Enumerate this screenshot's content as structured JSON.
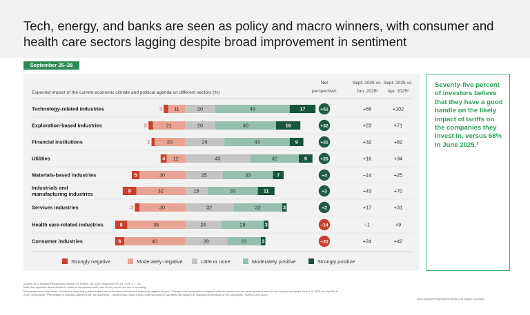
{
  "title": "Tech, energy, and banks are seen as policy and macro winners, with consumer and health care sectors lagging despite broad improvement in sentiment",
  "date_badge": "September 25–28",
  "chart_data": {
    "type": "bar",
    "orientation": "horizontal-stacked",
    "title": "Expected impact of the current economic climate and political agenda on different sectors (%)",
    "columns": {
      "net": "Net perspective¹",
      "jun": "Sept. 2025 vs. Jun. 2025²",
      "apr": "Sept. 2025 vs. Apr. 2025²"
    },
    "categories": [
      "Technology-related industries",
      "Exploration-based industries",
      "Financial institutions",
      "Utilities",
      "Materials-based industries",
      "Industrials and manufacturing industries",
      "Services industries",
      "Health care-related industries",
      "Consumer industries"
    ],
    "category_lines": [
      [
        "Technology-related industries"
      ],
      [
        "Exploration-based industries"
      ],
      [
        "Financial institutions"
      ],
      [
        "Utilities"
      ],
      [
        "Materials-based industries"
      ],
      [
        "Industrials and",
        "manufacturing industries"
      ],
      [
        "Services industries"
      ],
      [
        "Health care-related industries"
      ],
      [
        "Consumer industries"
      ]
    ],
    "series": [
      {
        "name": "Strongly negative",
        "color": "#c8402f",
        "values": [
          3,
          3,
          2,
          4,
          5,
          9,
          3,
          8,
          6
        ]
      },
      {
        "name": "Moderately negative",
        "color": "#e9a392",
        "values": [
          11,
          21,
          20,
          12,
          30,
          32,
          30,
          38,
          40
        ]
      },
      {
        "name": "Little or none",
        "color": "#c3c3c3",
        "values": [
          20,
          20,
          26,
          43,
          25,
          15,
          32,
          24,
          28
        ]
      },
      {
        "name": "Moderately positive",
        "color": "#97bfae",
        "values": [
          49,
          40,
          43,
          32,
          33,
          33,
          32,
          28,
          22
        ]
      },
      {
        "name": "Strongly positive",
        "color": "#17543a",
        "values": [
          17,
          16,
          9,
          9,
          7,
          11,
          3,
          3,
          3
        ]
      }
    ],
    "net_perspective": [
      "+51",
      "+32",
      "+31",
      "+25",
      "+4",
      "+3",
      "+2",
      "–14",
      "–20"
    ],
    "net_colors": [
      "#1f5c43",
      "#1f5c43",
      "#1f5c43",
      "#1f5c43",
      "#1f5c43",
      "#1f5c43",
      "#1f5c43",
      "#c8402f",
      "#c8402f"
    ],
    "vs_jun_2025": [
      "+68",
      "+23",
      "+32",
      "+16",
      "–14",
      "+43",
      "+17",
      "–1",
      "+24"
    ],
    "vs_apr_2025": [
      "+102",
      "+71",
      "+82",
      "+34",
      "+25",
      "+70",
      "+31",
      "+9",
      "+42"
    ],
    "legend": [
      "Strongly negative",
      "Moderately negative",
      "Little or none",
      "Moderately positive",
      "Strongly positive"
    ]
  },
  "callout": "Seventy-five percent of investors believe that they have a good handle on the likely impact of tariffs on the companies they invest in, versus 68% in June 2025.³",
  "footer": {
    "source": "Source: BCG Investor Perspectives Series, US Edition, Q3 2025, September 25–28, 2025, n = 152.",
    "note": "Note: Any apparent discrepancies in totals or comparisons with prior survey results are due to rounding.",
    "fn1": "¹Net perspective is the share of investors expecting positive impact minus the share of investors expecting negative impact. ²Change in net perspective compared with the results from the same question asked in the surveys conducted June 6–8, 2025, and April 8–9,",
    "fn2": "2025, respectively. ³Percentage of investors agreeing with the statement, “I believe that I have a good understanding of how tariffs will impact the financial performance of the companies I invest in and cover.”",
    "edition": "BCG Investor Perspectives Series | US Edition, Q3 2025."
  }
}
